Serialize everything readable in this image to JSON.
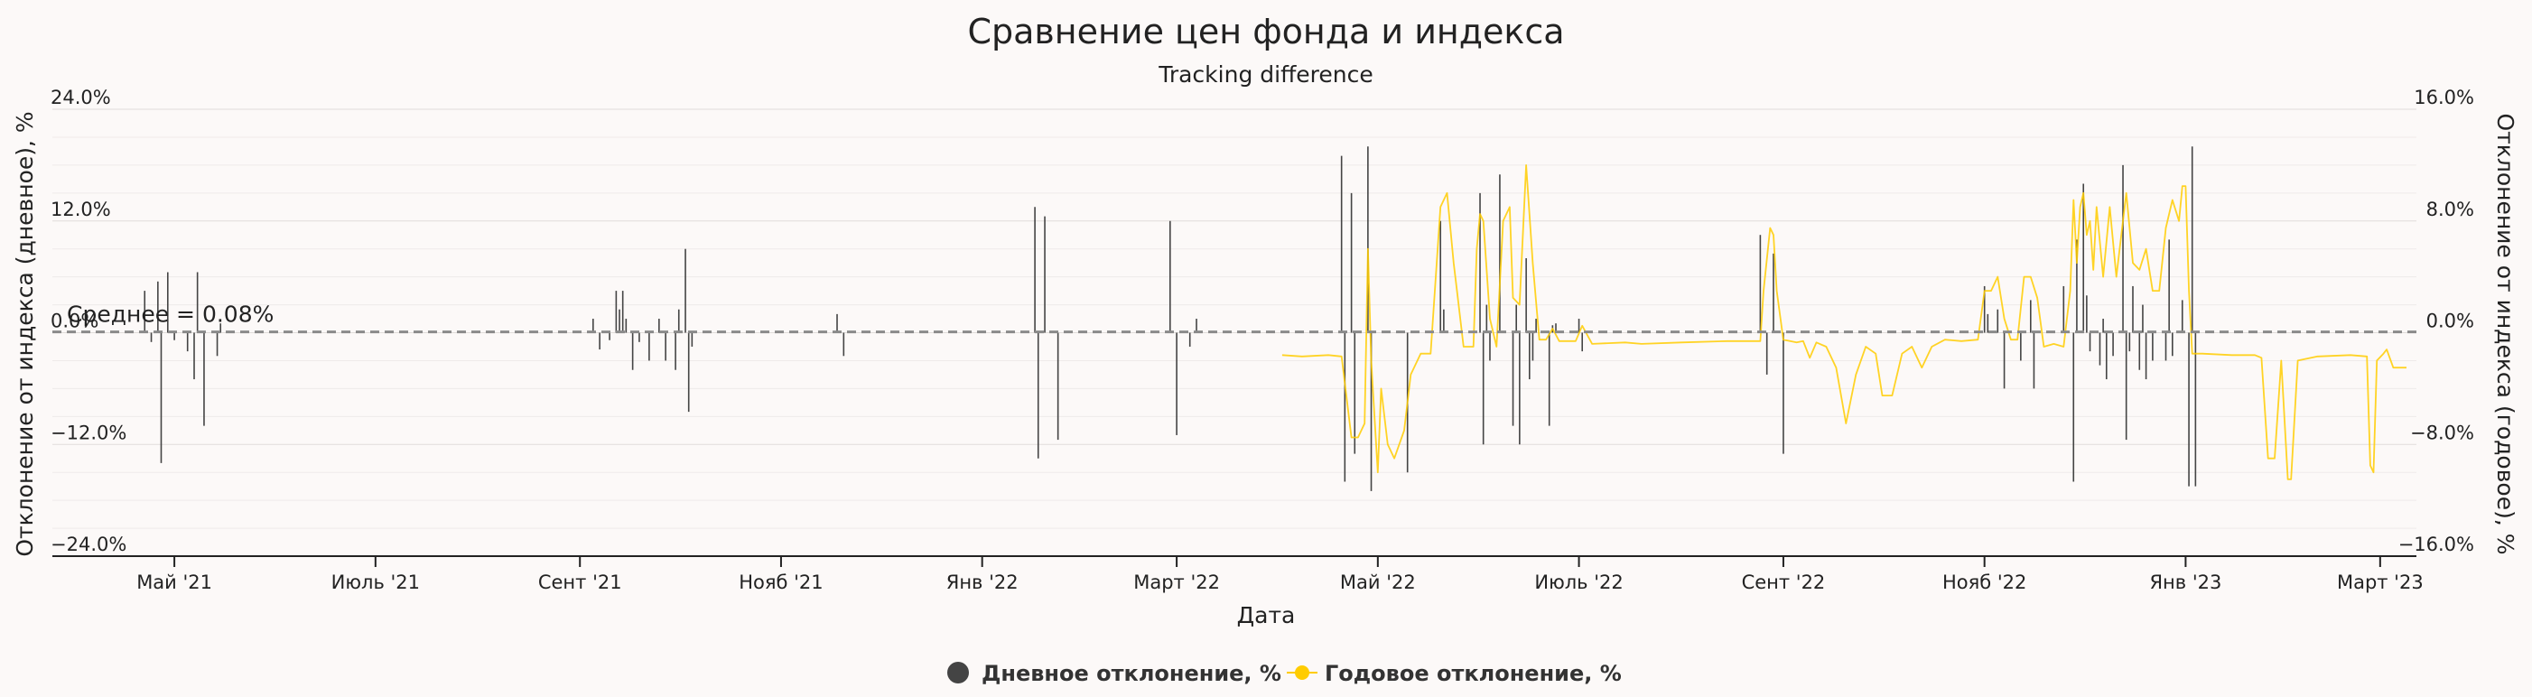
{
  "chart_data": {
    "type": "bar",
    "title": "Сравнение цен фонда и индекса",
    "subtitle": "Tracking difference",
    "xlabel": "Дата",
    "ylabel_left": "Отклонение от индекса (дневное), %",
    "ylabel_right": "Отклонение от индекса (годовое), %",
    "x_range": [
      "2021-03-25",
      "2023-03-12"
    ],
    "x_ticks": [
      {
        "date": "2021-05-01",
        "label": "Май '21"
      },
      {
        "date": "2021-07-01",
        "label": "Июль '21"
      },
      {
        "date": "2021-09-01",
        "label": "Сент '21"
      },
      {
        "date": "2021-11-01",
        "label": "Нояб '21"
      },
      {
        "date": "2022-01-01",
        "label": "Янв '22"
      },
      {
        "date": "2022-03-01",
        "label": "Март '22"
      },
      {
        "date": "2022-05-01",
        "label": "Май '22"
      },
      {
        "date": "2022-07-01",
        "label": "Июль '22"
      },
      {
        "date": "2022-09-01",
        "label": "Сент '22"
      },
      {
        "date": "2022-11-01",
        "label": "Нояб '22"
      },
      {
        "date": "2023-01-01",
        "label": "Янв '23"
      },
      {
        "date": "2023-03-01",
        "label": "Март '23"
      }
    ],
    "y_left": {
      "range": [
        -24,
        24
      ],
      "ticks": [
        24,
        12,
        0,
        -12,
        -24
      ],
      "tick_labels": [
        "24.0%",
        "12.0%",
        "0.0%",
        "−12.0%",
        "−24.0%"
      ]
    },
    "y_right": {
      "range": [
        -16,
        16
      ],
      "ticks": [
        16,
        8,
        0,
        -8,
        -16
      ],
      "tick_labels": [
        "16.0%",
        "8.0%",
        "0.0%",
        "−8.0%",
        "−16.0%"
      ]
    },
    "mean_line": {
      "value": 0.08,
      "label": "Среднее = 0.08%"
    },
    "grid": true,
    "legend_position": "bottom",
    "series": [
      {
        "name": "Дневное отклонение, %",
        "type": "bar",
        "axis": "left",
        "color": "#444444",
        "points": [
          {
            "x": "2021-04-22",
            "y": 4.5
          },
          {
            "x": "2021-04-24",
            "y": -1.0
          },
          {
            "x": "2021-04-26",
            "y": 5.5
          },
          {
            "x": "2021-04-27",
            "y": -14.0
          },
          {
            "x": "2021-04-29",
            "y": 6.5
          },
          {
            "x": "2021-05-01",
            "y": -0.8
          },
          {
            "x": "2021-05-05",
            "y": -2.0
          },
          {
            "x": "2021-05-07",
            "y": -5.0
          },
          {
            "x": "2021-05-08",
            "y": 6.5
          },
          {
            "x": "2021-05-10",
            "y": -10.0
          },
          {
            "x": "2021-05-14",
            "y": -2.5
          },
          {
            "x": "2021-05-15",
            "y": 1.0
          },
          {
            "x": "2021-09-05",
            "y": 1.5
          },
          {
            "x": "2021-09-07",
            "y": -1.8
          },
          {
            "x": "2021-09-10",
            "y": -0.8
          },
          {
            "x": "2021-09-12",
            "y": 4.5
          },
          {
            "x": "2021-09-13",
            "y": 2.5
          },
          {
            "x": "2021-09-14",
            "y": 4.5
          },
          {
            "x": "2021-09-15",
            "y": 1.5
          },
          {
            "x": "2021-09-17",
            "y": -4.0
          },
          {
            "x": "2021-09-19",
            "y": -1.0
          },
          {
            "x": "2021-09-22",
            "y": -3.0
          },
          {
            "x": "2021-09-25",
            "y": 1.5
          },
          {
            "x": "2021-09-27",
            "y": -3.0
          },
          {
            "x": "2021-09-30",
            "y": -4.0
          },
          {
            "x": "2021-10-01",
            "y": 2.5
          },
          {
            "x": "2021-10-03",
            "y": 9.0
          },
          {
            "x": "2021-10-04",
            "y": -8.5
          },
          {
            "x": "2021-10-05",
            "y": -1.5
          },
          {
            "x": "2021-11-18",
            "y": 2.0
          },
          {
            "x": "2021-11-20",
            "y": -2.5
          },
          {
            "x": "2022-01-17",
            "y": 13.5
          },
          {
            "x": "2022-01-18",
            "y": -13.5
          },
          {
            "x": "2022-01-20",
            "y": 12.5
          },
          {
            "x": "2022-01-24",
            "y": -11.5
          },
          {
            "x": "2022-02-27",
            "y": 12.0
          },
          {
            "x": "2022-03-01",
            "y": -11.0
          },
          {
            "x": "2022-03-05",
            "y": -1.5
          },
          {
            "x": "2022-03-07",
            "y": 1.5
          },
          {
            "x": "2022-04-20",
            "y": 19.0
          },
          {
            "x": "2022-04-21",
            "y": -16.0
          },
          {
            "x": "2022-04-23",
            "y": 15.0
          },
          {
            "x": "2022-04-24",
            "y": -13.0
          },
          {
            "x": "2022-04-28",
            "y": 20.0
          },
          {
            "x": "2022-04-29",
            "y": -17.0
          },
          {
            "x": "2022-05-10",
            "y": -15.0
          },
          {
            "x": "2022-05-20",
            "y": 12.0
          },
          {
            "x": "2022-05-21",
            "y": 2.5
          },
          {
            "x": "2022-06-01",
            "y": 15.0
          },
          {
            "x": "2022-06-02",
            "y": -12.0
          },
          {
            "x": "2022-06-03",
            "y": 3.0
          },
          {
            "x": "2022-06-04",
            "y": -3.0
          },
          {
            "x": "2022-06-07",
            "y": 17.0
          },
          {
            "x": "2022-06-11",
            "y": -10.0
          },
          {
            "x": "2022-06-12",
            "y": 3.0
          },
          {
            "x": "2022-06-13",
            "y": -12.0
          },
          {
            "x": "2022-06-15",
            "y": 8.0
          },
          {
            "x": "2022-06-16",
            "y": -5.0
          },
          {
            "x": "2022-06-17",
            "y": -3.0
          },
          {
            "x": "2022-06-18",
            "y": 1.5
          },
          {
            "x": "2022-06-22",
            "y": -10.0
          },
          {
            "x": "2022-06-23",
            "y": 0.8
          },
          {
            "x": "2022-06-24",
            "y": 1.0
          },
          {
            "x": "2022-07-01",
            "y": 1.5
          },
          {
            "x": "2022-07-02",
            "y": -2.0
          },
          {
            "x": "2022-08-25",
            "y": 10.5
          },
          {
            "x": "2022-08-27",
            "y": -4.5
          },
          {
            "x": "2022-08-29",
            "y": 8.5
          },
          {
            "x": "2022-09-01",
            "y": -13.0
          },
          {
            "x": "2022-11-01",
            "y": 5.0
          },
          {
            "x": "2022-11-02",
            "y": 2.0
          },
          {
            "x": "2022-11-05",
            "y": 2.5
          },
          {
            "x": "2022-11-07",
            "y": -6.0
          },
          {
            "x": "2022-11-12",
            "y": -3.0
          },
          {
            "x": "2022-11-15",
            "y": 3.5
          },
          {
            "x": "2022-11-16",
            "y": -6.0
          },
          {
            "x": "2022-11-25",
            "y": 5.0
          },
          {
            "x": "2022-11-28",
            "y": -16.0
          },
          {
            "x": "2022-11-29",
            "y": 10.0
          },
          {
            "x": "2022-12-01",
            "y": 16.0
          },
          {
            "x": "2022-12-02",
            "y": 4.0
          },
          {
            "x": "2022-12-03",
            "y": -2.0
          },
          {
            "x": "2022-12-06",
            "y": -3.5
          },
          {
            "x": "2022-12-07",
            "y": 1.5
          },
          {
            "x": "2022-12-08",
            "y": -5.0
          },
          {
            "x": "2022-12-10",
            "y": -2.5
          },
          {
            "x": "2022-12-13",
            "y": 18.0
          },
          {
            "x": "2022-12-14",
            "y": -11.5
          },
          {
            "x": "2022-12-15",
            "y": -2.0
          },
          {
            "x": "2022-12-16",
            "y": 5.0
          },
          {
            "x": "2022-12-18",
            "y": -4.0
          },
          {
            "x": "2022-12-19",
            "y": 3.0
          },
          {
            "x": "2022-12-20",
            "y": -5.0
          },
          {
            "x": "2022-12-22",
            "y": -3.0
          },
          {
            "x": "2022-12-26",
            "y": -3.0
          },
          {
            "x": "2022-12-27",
            "y": 10.0
          },
          {
            "x": "2022-12-28",
            "y": -2.5
          },
          {
            "x": "2022-12-31",
            "y": 3.5
          },
          {
            "x": "2023-01-02",
            "y": -16.5
          },
          {
            "x": "2023-01-03",
            "y": 20.0
          },
          {
            "x": "2023-01-04",
            "y": -16.5
          }
        ]
      },
      {
        "name": "Годовое отклонение, %",
        "type": "line",
        "axis": "right",
        "color": "#ffcc00",
        "points": [
          {
            "x": "2022-04-02",
            "y": -1.6
          },
          {
            "x": "2022-04-08",
            "y": -1.7
          },
          {
            "x": "2022-04-16",
            "y": -1.6
          },
          {
            "x": "2022-04-20",
            "y": -1.7
          },
          {
            "x": "2022-04-23",
            "y": -7.5
          },
          {
            "x": "2022-04-25",
            "y": -7.5
          },
          {
            "x": "2022-04-27",
            "y": -6.5
          },
          {
            "x": "2022-04-28",
            "y": 6.0
          },
          {
            "x": "2022-04-29",
            "y": -2.0
          },
          {
            "x": "2022-05-01",
            "y": -10.0
          },
          {
            "x": "2022-05-02",
            "y": -4.0
          },
          {
            "x": "2022-05-04",
            "y": -8.0
          },
          {
            "x": "2022-05-06",
            "y": -9.0
          },
          {
            "x": "2022-05-09",
            "y": -7.0
          },
          {
            "x": "2022-05-11",
            "y": -3.0
          },
          {
            "x": "2022-05-14",
            "y": -1.5
          },
          {
            "x": "2022-05-17",
            "y": -1.5
          },
          {
            "x": "2022-05-20",
            "y": 9.0
          },
          {
            "x": "2022-05-22",
            "y": 10.0
          },
          {
            "x": "2022-05-24",
            "y": 5.0
          },
          {
            "x": "2022-05-25",
            "y": 3.0
          },
          {
            "x": "2022-05-27",
            "y": -1.0
          },
          {
            "x": "2022-05-30",
            "y": -1.0
          },
          {
            "x": "2022-05-31",
            "y": 6.0
          },
          {
            "x": "2022-06-01",
            "y": 8.5
          },
          {
            "x": "2022-06-02",
            "y": 8.0
          },
          {
            "x": "2022-06-04",
            "y": 1.0
          },
          {
            "x": "2022-06-06",
            "y": -1.0
          },
          {
            "x": "2022-06-08",
            "y": 8.0
          },
          {
            "x": "2022-06-10",
            "y": 9.0
          },
          {
            "x": "2022-06-11",
            "y": 2.5
          },
          {
            "x": "2022-06-13",
            "y": 2.0
          },
          {
            "x": "2022-06-15",
            "y": 12.0
          },
          {
            "x": "2022-06-17",
            "y": 5.0
          },
          {
            "x": "2022-06-19",
            "y": -0.5
          },
          {
            "x": "2022-06-21",
            "y": -0.5
          },
          {
            "x": "2022-06-23",
            "y": 0.3
          },
          {
            "x": "2022-06-25",
            "y": -0.6
          },
          {
            "x": "2022-06-30",
            "y": -0.6
          },
          {
            "x": "2022-07-02",
            "y": 0.5
          },
          {
            "x": "2022-07-05",
            "y": -0.8
          },
          {
            "x": "2022-07-15",
            "y": -0.7
          },
          {
            "x": "2022-07-20",
            "y": -0.8
          },
          {
            "x": "2022-08-01",
            "y": -0.7
          },
          {
            "x": "2022-08-15",
            "y": -0.6
          },
          {
            "x": "2022-08-25",
            "y": -0.6
          },
          {
            "x": "2022-08-26",
            "y": 3.0
          },
          {
            "x": "2022-08-28",
            "y": 7.5
          },
          {
            "x": "2022-08-29",
            "y": 7.0
          },
          {
            "x": "2022-08-30",
            "y": 3.0
          },
          {
            "x": "2022-09-01",
            "y": -0.5
          },
          {
            "x": "2022-09-05",
            "y": -0.7
          },
          {
            "x": "2022-09-07",
            "y": -0.6
          },
          {
            "x": "2022-09-09",
            "y": -1.8
          },
          {
            "x": "2022-09-11",
            "y": -0.7
          },
          {
            "x": "2022-09-14",
            "y": -1.0
          },
          {
            "x": "2022-09-17",
            "y": -2.5
          },
          {
            "x": "2022-09-20",
            "y": -6.5
          },
          {
            "x": "2022-09-23",
            "y": -3.0
          },
          {
            "x": "2022-09-26",
            "y": -1.0
          },
          {
            "x": "2022-09-29",
            "y": -1.5
          },
          {
            "x": "2022-10-01",
            "y": -4.5
          },
          {
            "x": "2022-10-04",
            "y": -4.5
          },
          {
            "x": "2022-10-07",
            "y": -1.5
          },
          {
            "x": "2022-10-10",
            "y": -1.0
          },
          {
            "x": "2022-10-13",
            "y": -2.5
          },
          {
            "x": "2022-10-16",
            "y": -1.0
          },
          {
            "x": "2022-10-20",
            "y": -0.5
          },
          {
            "x": "2022-10-25",
            "y": -0.6
          },
          {
            "x": "2022-10-30",
            "y": -0.5
          },
          {
            "x": "2022-11-01",
            "y": 3.0
          },
          {
            "x": "2022-11-03",
            "y": 3.0
          },
          {
            "x": "2022-11-05",
            "y": 4.0
          },
          {
            "x": "2022-11-07",
            "y": 1.0
          },
          {
            "x": "2022-11-09",
            "y": -0.5
          },
          {
            "x": "2022-11-11",
            "y": -0.5
          },
          {
            "x": "2022-11-13",
            "y": 4.0
          },
          {
            "x": "2022-11-15",
            "y": 4.0
          },
          {
            "x": "2022-11-17",
            "y": 2.5
          },
          {
            "x": "2022-11-19",
            "y": -1.0
          },
          {
            "x": "2022-11-22",
            "y": -0.8
          },
          {
            "x": "2022-11-25",
            "y": -1.0
          },
          {
            "x": "2022-11-27",
            "y": 3.0
          },
          {
            "x": "2022-11-28",
            "y": 9.5
          },
          {
            "x": "2022-11-29",
            "y": 5.0
          },
          {
            "x": "2022-11-30",
            "y": 9.0
          },
          {
            "x": "2022-12-01",
            "y": 10.0
          },
          {
            "x": "2022-12-02",
            "y": 7.0
          },
          {
            "x": "2022-12-03",
            "y": 8.0
          },
          {
            "x": "2022-12-04",
            "y": 4.5
          },
          {
            "x": "2022-12-05",
            "y": 9.0
          },
          {
            "x": "2022-12-07",
            "y": 4.0
          },
          {
            "x": "2022-12-09",
            "y": 9.0
          },
          {
            "x": "2022-12-11",
            "y": 4.0
          },
          {
            "x": "2022-12-14",
            "y": 10.0
          },
          {
            "x": "2022-12-16",
            "y": 5.0
          },
          {
            "x": "2022-12-18",
            "y": 4.5
          },
          {
            "x": "2022-12-20",
            "y": 6.0
          },
          {
            "x": "2022-12-22",
            "y": 3.0
          },
          {
            "x": "2022-12-24",
            "y": 3.0
          },
          {
            "x": "2022-12-26",
            "y": 7.5
          },
          {
            "x": "2022-12-28",
            "y": 9.5
          },
          {
            "x": "2022-12-30",
            "y": 8.0
          },
          {
            "x": "2022-12-31",
            "y": 10.5
          },
          {
            "x": "2023-01-01",
            "y": 10.5
          },
          {
            "x": "2023-01-02",
            "y": 3.0
          },
          {
            "x": "2023-01-03",
            "y": -1.5
          },
          {
            "x": "2023-01-06",
            "y": -1.5
          },
          {
            "x": "2023-01-15",
            "y": -1.6
          },
          {
            "x": "2023-01-22",
            "y": -1.6
          },
          {
            "x": "2023-01-24",
            "y": -1.8
          },
          {
            "x": "2023-01-26",
            "y": -9.0
          },
          {
            "x": "2023-01-28",
            "y": -9.0
          },
          {
            "x": "2023-01-30",
            "y": -2.0
          },
          {
            "x": "2023-02-01",
            "y": -10.5
          },
          {
            "x": "2023-02-02",
            "y": -10.5
          },
          {
            "x": "2023-02-04",
            "y": -2.0
          },
          {
            "x": "2023-02-10",
            "y": -1.7
          },
          {
            "x": "2023-02-20",
            "y": -1.6
          },
          {
            "x": "2023-02-25",
            "y": -1.7
          },
          {
            "x": "2023-02-26",
            "y": -9.5
          },
          {
            "x": "2023-02-27",
            "y": -10.0
          },
          {
            "x": "2023-02-28",
            "y": -2.0
          },
          {
            "x": "2023-03-02",
            "y": -1.5
          },
          {
            "x": "2023-03-03",
            "y": -1.2
          },
          {
            "x": "2023-03-05",
            "y": -2.5
          },
          {
            "x": "2023-03-09",
            "y": -2.5
          }
        ]
      }
    ]
  }
}
